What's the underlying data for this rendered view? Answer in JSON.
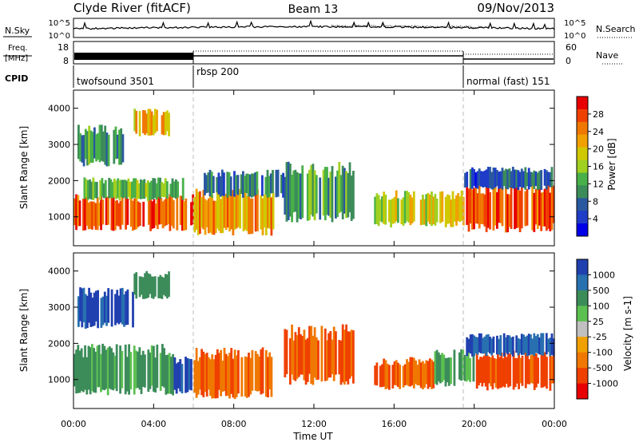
{
  "header": {
    "title": "Clyde River (fitACF)",
    "beam": "Beam 13",
    "date": "09/Nov/2013"
  },
  "nsky_panel": {
    "left_label": "N.Sky",
    "right_label": "N.Search",
    "left_ticks": [
      "10^5",
      "10^0"
    ],
    "right_ticks": [
      "10^5",
      "10^0"
    ]
  },
  "freq_panel": {
    "left_label_1": "Freq.",
    "left_label_2": "[MHz]",
    "left_ticks": [
      "18",
      "8"
    ],
    "right_label": "Nave",
    "right_ticks": [
      "60",
      "0"
    ]
  },
  "cpid_panel": {
    "label": "CPID",
    "modes": [
      {
        "name": "twofsound 3501",
        "start_hour": 0,
        "end_hour": 6
      },
      {
        "name": "rbsp 200",
        "start_hour": 6,
        "end_hour": 19.5
      },
      {
        "name": "normal (fast) 151",
        "start_hour": 19.5,
        "end_hour": 24
      }
    ]
  },
  "power_panel": {
    "ylabel": "Slant Range [km]",
    "yticks": [
      "4000",
      "3000",
      "2000",
      "1000"
    ],
    "colorbar": {
      "label": "Power [dB]",
      "ticks": [
        "28",
        "24",
        "20",
        "16",
        "12",
        "8",
        "4"
      ],
      "colors": [
        "#e80000",
        "#f04000",
        "#f07800",
        "#f0a000",
        "#d0c800",
        "#a0d020",
        "#48b048",
        "#3c8c5a",
        "#2a58a0",
        "#1e3cc8",
        "#0000e8"
      ]
    }
  },
  "velocity_panel": {
    "ylabel": "Slant Range [km]",
    "yticks": [
      "4000",
      "3000",
      "2000",
      "1000"
    ],
    "colorbar": {
      "label": "Velocity [m s-1]",
      "ticks": [
        "1000",
        "500",
        "100",
        "25",
        "-25",
        "-100",
        "-500",
        "-1000"
      ],
      "colors": [
        "#2040b0",
        "#2870b0",
        "#3c8c5a",
        "#5cc050",
        "#c0c0c0",
        "#f0a000",
        "#f07800",
        "#f04000",
        "#e80000"
      ]
    }
  },
  "xaxis": {
    "label": "Time UT",
    "ticks": [
      "00:00",
      "04:00",
      "08:00",
      "12:00",
      "16:00",
      "20:00",
      "00:00"
    ]
  },
  "chart_data": [
    {
      "type": "heatmap",
      "title": "",
      "quantity": "Power",
      "units": "dB",
      "x_range_hours": [
        0,
        24
      ],
      "ylim": [
        200,
        4500
      ],
      "ylabel": "Slant Range [km]",
      "xlabel": "Time UT",
      "regions": [
        {
          "t0": 0.0,
          "t1": 6.0,
          "r0": 700,
          "r1": 1500,
          "power": 26
        },
        {
          "t0": 0.5,
          "t1": 5.5,
          "r0": 1500,
          "r1": 2000,
          "power": 14
        },
        {
          "t0": 0.2,
          "t1": 2.5,
          "r0": 2500,
          "r1": 3400,
          "power": 12
        },
        {
          "t0": 3.0,
          "t1": 4.8,
          "r0": 3300,
          "r1": 3900,
          "power": 20
        },
        {
          "t0": 6.0,
          "t1": 10.0,
          "r0": 600,
          "r1": 1600,
          "power": 22
        },
        {
          "t0": 6.5,
          "t1": 10.5,
          "r0": 1600,
          "r1": 2200,
          "power": 10
        },
        {
          "t0": 10.5,
          "t1": 14.0,
          "r0": 1000,
          "r1": 2300,
          "power": 12
        },
        {
          "t0": 15.0,
          "t1": 19.5,
          "r0": 800,
          "r1": 1600,
          "power": 18
        },
        {
          "t0": 19.5,
          "t1": 24.0,
          "r0": 700,
          "r1": 1800,
          "power": 26
        },
        {
          "t0": 19.5,
          "t1": 24.0,
          "r0": 1800,
          "r1": 2300,
          "power": 8
        }
      ]
    },
    {
      "type": "heatmap",
      "title": "",
      "quantity": "Velocity",
      "units": "m s-1",
      "x_range_hours": [
        0,
        24
      ],
      "ylim": [
        200,
        4500
      ],
      "ylabel": "Slant Range [km]",
      "xlabel": "Time UT",
      "regions": [
        {
          "t0": 0.0,
          "t1": 5.0,
          "r0": 700,
          "r1": 1800,
          "velocity": 100
        },
        {
          "t0": 5.0,
          "t1": 6.0,
          "r0": 700,
          "r1": 1500,
          "velocity": 800
        },
        {
          "t0": 0.2,
          "t1": 3.0,
          "r0": 2500,
          "r1": 3400,
          "velocity": 600
        },
        {
          "t0": 3.0,
          "t1": 4.8,
          "r0": 3300,
          "r1": 3900,
          "velocity": 200
        },
        {
          "t0": 6.0,
          "t1": 10.0,
          "r0": 600,
          "r1": 1700,
          "velocity": -300
        },
        {
          "t0": 10.5,
          "t1": 14.0,
          "r0": 1000,
          "r1": 2300,
          "velocity": -300
        },
        {
          "t0": 15.0,
          "t1": 18.0,
          "r0": 800,
          "r1": 1500,
          "velocity": -300
        },
        {
          "t0": 18.0,
          "t1": 20.0,
          "r0": 900,
          "r1": 1700,
          "velocity": 100
        },
        {
          "t0": 20.0,
          "t1": 24.0,
          "r0": 800,
          "r1": 1700,
          "velocity": -400
        },
        {
          "t0": 19.5,
          "t1": 24.0,
          "r0": 1700,
          "r1": 2200,
          "velocity": 600
        }
      ]
    }
  ]
}
